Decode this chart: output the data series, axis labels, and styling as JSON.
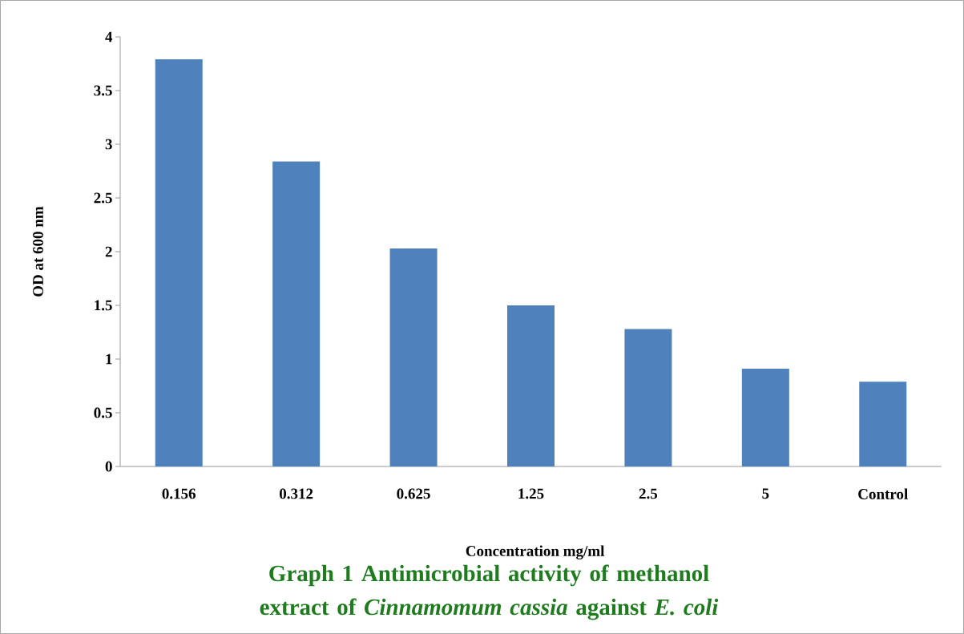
{
  "chart_data": {
    "type": "bar",
    "title": "Graph 1 Antimicrobial activity of methanol extract of *Cinnamomum cassia* against *E. coli*",
    "xlabel": "Concentration mg/ml",
    "ylabel": "OD at 600 nm",
    "categories": [
      "0.156",
      "0.312",
      "0.625",
      "1.25",
      "2.5",
      "5",
      "Control"
    ],
    "values": [
      3.79,
      2.84,
      2.03,
      1.5,
      1.28,
      0.91,
      0.79
    ],
    "color": "#4f81bd",
    "ylim": [
      0,
      4
    ],
    "yticks": [
      0,
      0.5,
      1,
      1.5,
      2,
      2.5,
      3,
      3.5,
      4
    ]
  }
}
